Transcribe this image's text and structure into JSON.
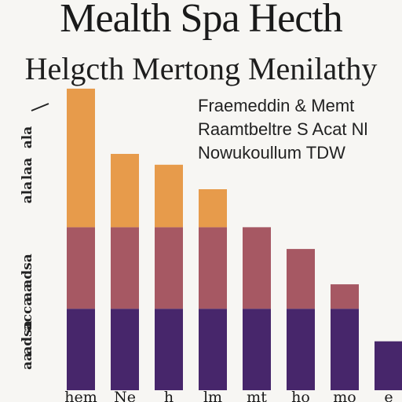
{
  "chart_data": {
    "type": "bar",
    "title": "Mealth Spa Hecth",
    "subtitle": "Helgcth Mertong Menilathy",
    "legend": [
      "Fraemeddin & Memt",
      "Raamtbeltre S Acat Nl",
      "Nowukoullum TDW"
    ],
    "categories": [
      "hem",
      "Ne",
      "h",
      "lm",
      "mt",
      "ho",
      "mo",
      "e"
    ],
    "stack_series": [
      {
        "values": [
          30,
          30,
          30,
          30,
          30,
          30,
          30,
          18
        ],
        "color": "#47266b"
      },
      {
        "values": [
          30,
          30,
          30,
          30,
          30,
          22,
          9,
          0
        ],
        "color": "#a65863"
      },
      {
        "values": [
          51,
          27,
          23,
          14,
          0,
          0,
          0,
          0
        ],
        "color": "#e79b4b"
      }
    ],
    "ylim": [
      0,
      112
    ],
    "ytick_labels": [
      "ala",
      "laa",
      "ala",
      "adsa",
      "aa",
      "acca",
      "adsa",
      "aa"
    ],
    "grid": false
  }
}
